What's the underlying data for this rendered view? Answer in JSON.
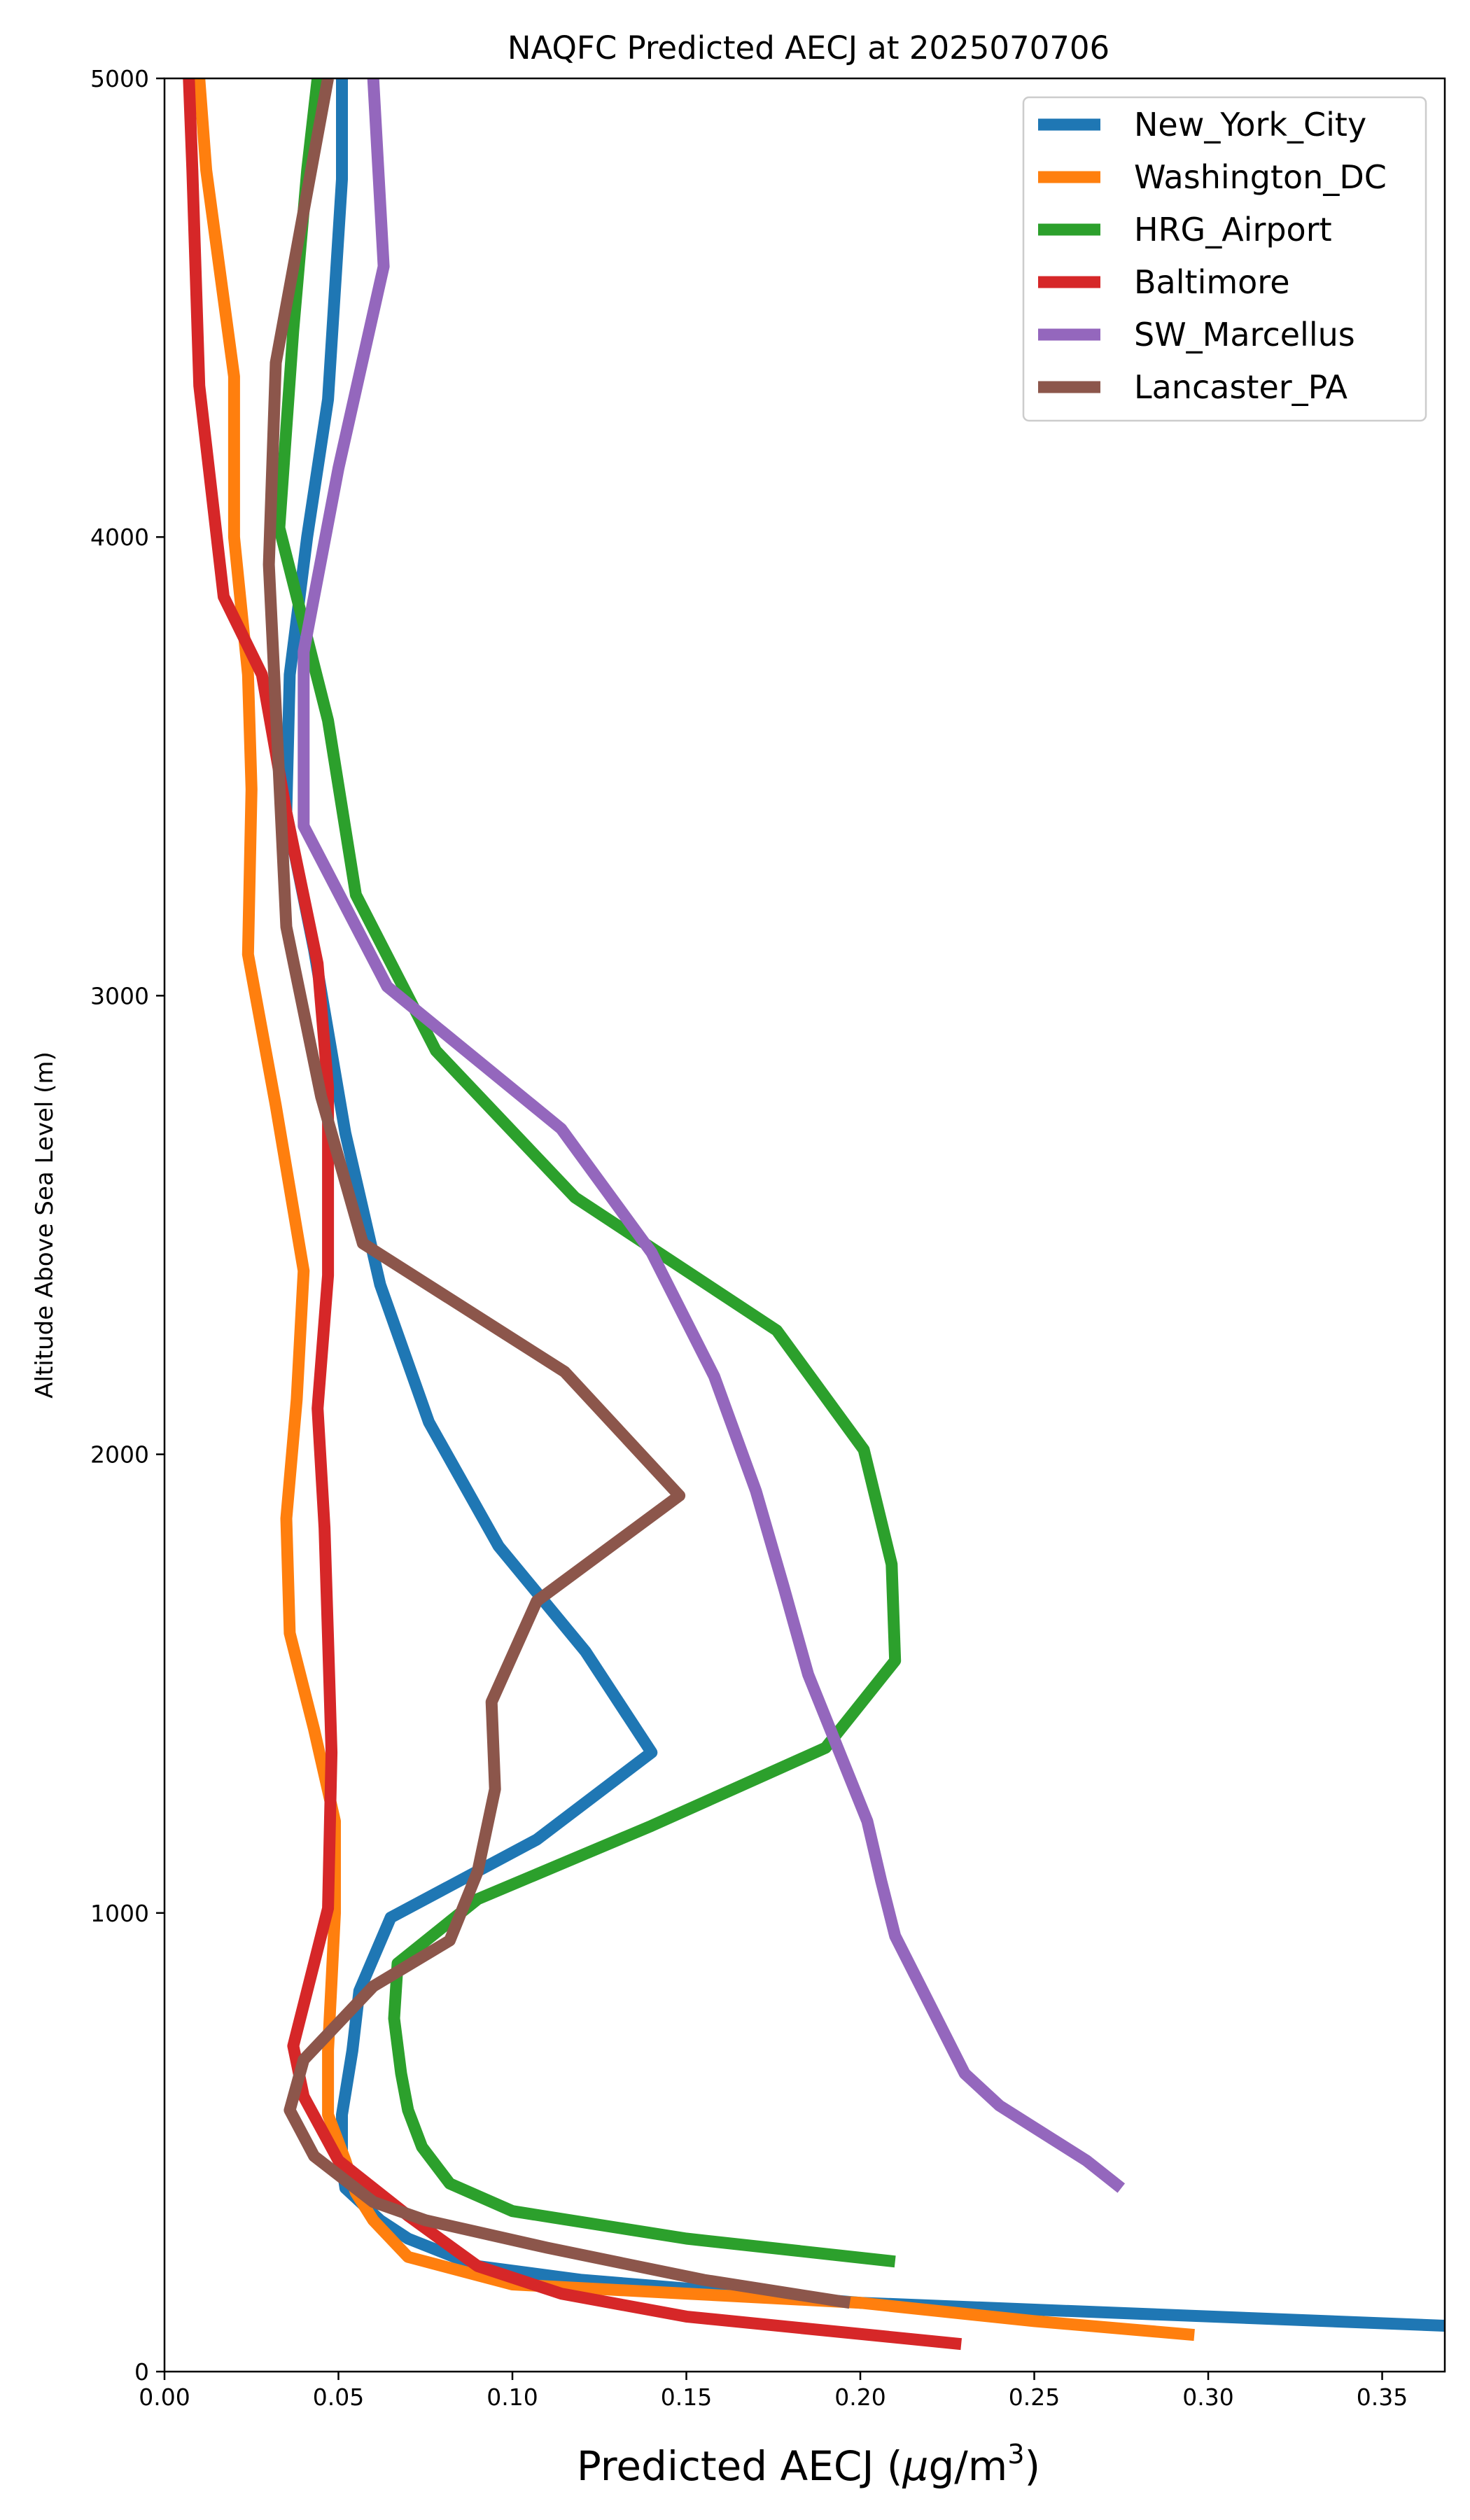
{
  "chart_data": {
    "type": "line",
    "title": "NAQFC Predicted AECJ at 2025070706",
    "xlabel_main": "Predicted AECJ (",
    "xlabel_mu": "μ",
    "xlabel_unit": "g/m",
    "xlabel_sup": "3",
    "xlabel_close": ")",
    "ylabel": "Altitude Above Sea Level (m)",
    "xlim": [
      0,
      0.368
    ],
    "ylim": [
      0,
      5000
    ],
    "xticks": [
      0.0,
      0.05,
      0.1,
      0.15,
      0.2,
      0.25,
      0.3,
      0.35
    ],
    "xtick_labels": [
      "0.00",
      "0.05",
      "0.10",
      "0.15",
      "0.20",
      "0.25",
      "0.30",
      "0.35"
    ],
    "yticks": [
      0,
      1000,
      2000,
      3000,
      4000,
      5000
    ],
    "ytick_labels": [
      "0",
      "1000",
      "2000",
      "3000",
      "4000",
      "5000"
    ],
    "grid": false,
    "legend_position": "top-right",
    "series": [
      {
        "name": "New_York_City",
        "color": "#1f77b4",
        "points": [
          [
            0.368,
            100
          ],
          [
            0.2,
            150
          ],
          [
            0.12,
            200
          ],
          [
            0.09,
            230
          ],
          [
            0.07,
            290
          ],
          [
            0.062,
            330
          ],
          [
            0.052,
            400
          ],
          [
            0.051,
            450
          ],
          [
            0.051,
            560
          ],
          [
            0.054,
            700
          ],
          [
            0.056,
            830
          ],
          [
            0.065,
            990
          ],
          [
            0.107,
            1160
          ],
          [
            0.14,
            1350
          ],
          [
            0.121,
            1570
          ],
          [
            0.096,
            1800
          ],
          [
            0.076,
            2070
          ],
          [
            0.062,
            2370
          ],
          [
            0.052,
            2700
          ],
          [
            0.043,
            3100
          ],
          [
            0.035,
            3400
          ],
          [
            0.036,
            3700
          ],
          [
            0.041,
            4000
          ],
          [
            0.047,
            4300
          ],
          [
            0.051,
            4780
          ],
          [
            0.051,
            5000
          ]
        ]
      },
      {
        "name": "Washington_DC",
        "color": "#ff7f0e",
        "points": [
          [
            0.296,
            80
          ],
          [
            0.25,
            110
          ],
          [
            0.2,
            150
          ],
          [
            0.15,
            170
          ],
          [
            0.1,
            190
          ],
          [
            0.07,
            250
          ],
          [
            0.06,
            330
          ],
          [
            0.055,
            390
          ],
          [
            0.052,
            460
          ],
          [
            0.047,
            560
          ],
          [
            0.047,
            700
          ],
          [
            0.048,
            850
          ],
          [
            0.049,
            1000
          ],
          [
            0.049,
            1200
          ],
          [
            0.043,
            1400
          ],
          [
            0.036,
            1610
          ],
          [
            0.035,
            1860
          ],
          [
            0.038,
            2120
          ],
          [
            0.04,
            2400
          ],
          [
            0.032,
            2760
          ],
          [
            0.024,
            3090
          ],
          [
            0.025,
            3450
          ],
          [
            0.024,
            3700
          ],
          [
            0.02,
            4000
          ],
          [
            0.02,
            4350
          ],
          [
            0.012,
            4800
          ],
          [
            0.01,
            5000
          ]
        ]
      },
      {
        "name": "HRG_Airport",
        "color": "#2ca02c",
        "points": [
          [
            0.21,
            240
          ],
          [
            0.15,
            290
          ],
          [
            0.1,
            350
          ],
          [
            0.082,
            410
          ],
          [
            0.074,
            490
          ],
          [
            0.07,
            570
          ],
          [
            0.068,
            650
          ],
          [
            0.066,
            770
          ],
          [
            0.067,
            890
          ],
          [
            0.09,
            1030
          ],
          [
            0.14,
            1190
          ],
          [
            0.19,
            1360
          ],
          [
            0.21,
            1550
          ],
          [
            0.209,
            1760
          ],
          [
            0.201,
            2010
          ],
          [
            0.176,
            2270
          ],
          [
            0.118,
            2560
          ],
          [
            0.078,
            2880
          ],
          [
            0.055,
            3220
          ],
          [
            0.047,
            3600
          ],
          [
            0.033,
            4020
          ],
          [
            0.037,
            4450
          ],
          [
            0.041,
            4800
          ],
          [
            0.044,
            5000
          ]
        ]
      },
      {
        "name": "Baltimore",
        "color": "#d62728",
        "points": [
          [
            0.229,
            60
          ],
          [
            0.15,
            120
          ],
          [
            0.114,
            170
          ],
          [
            0.09,
            230
          ],
          [
            0.07,
            340
          ],
          [
            0.05,
            460
          ],
          [
            0.04,
            600
          ],
          [
            0.037,
            710
          ],
          [
            0.047,
            1010
          ],
          [
            0.048,
            1350
          ],
          [
            0.047,
            1600
          ],
          [
            0.046,
            1840
          ],
          [
            0.044,
            2100
          ],
          [
            0.047,
            2390
          ],
          [
            0.047,
            2800
          ],
          [
            0.044,
            3070
          ],
          [
            0.035,
            3400
          ],
          [
            0.028,
            3700
          ],
          [
            0.017,
            3870
          ],
          [
            0.01,
            4330
          ],
          [
            0.008,
            4800
          ],
          [
            0.007,
            5000
          ]
        ]
      },
      {
        "name": "SW_Marcellus",
        "color": "#9467bd",
        "points": [
          [
            0.275,
            400
          ],
          [
            0.265,
            460
          ],
          [
            0.24,
            580
          ],
          [
            0.23,
            650
          ],
          [
            0.218,
            830
          ],
          [
            0.21,
            950
          ],
          [
            0.206,
            1070
          ],
          [
            0.202,
            1200
          ],
          [
            0.185,
            1520
          ],
          [
            0.178,
            1710
          ],
          [
            0.17,
            1920
          ],
          [
            0.158,
            2170
          ],
          [
            0.14,
            2440
          ],
          [
            0.114,
            2710
          ],
          [
            0.064,
            3020
          ],
          [
            0.04,
            3370
          ],
          [
            0.04,
            3750
          ],
          [
            0.05,
            4150
          ],
          [
            0.063,
            4590
          ],
          [
            0.06,
            5000
          ]
        ]
      },
      {
        "name": "Lancaster_PA",
        "color": "#8c564b",
        "points": [
          [
            0.197,
            150
          ],
          [
            0.155,
            200
          ],
          [
            0.11,
            270
          ],
          [
            0.075,
            330
          ],
          [
            0.06,
            370
          ],
          [
            0.043,
            470
          ],
          [
            0.036,
            570
          ],
          [
            0.04,
            680
          ],
          [
            0.06,
            840
          ],
          [
            0.082,
            940
          ],
          [
            0.09,
            1090
          ],
          [
            0.095,
            1270
          ],
          [
            0.094,
            1460
          ],
          [
            0.107,
            1680
          ],
          [
            0.148,
            1910
          ],
          [
            0.115,
            2180
          ],
          [
            0.057,
            2460
          ],
          [
            0.045,
            2780
          ],
          [
            0.035,
            3150
          ],
          [
            0.03,
            3940
          ],
          [
            0.032,
            4380
          ],
          [
            0.047,
            5000
          ]
        ]
      }
    ]
  }
}
